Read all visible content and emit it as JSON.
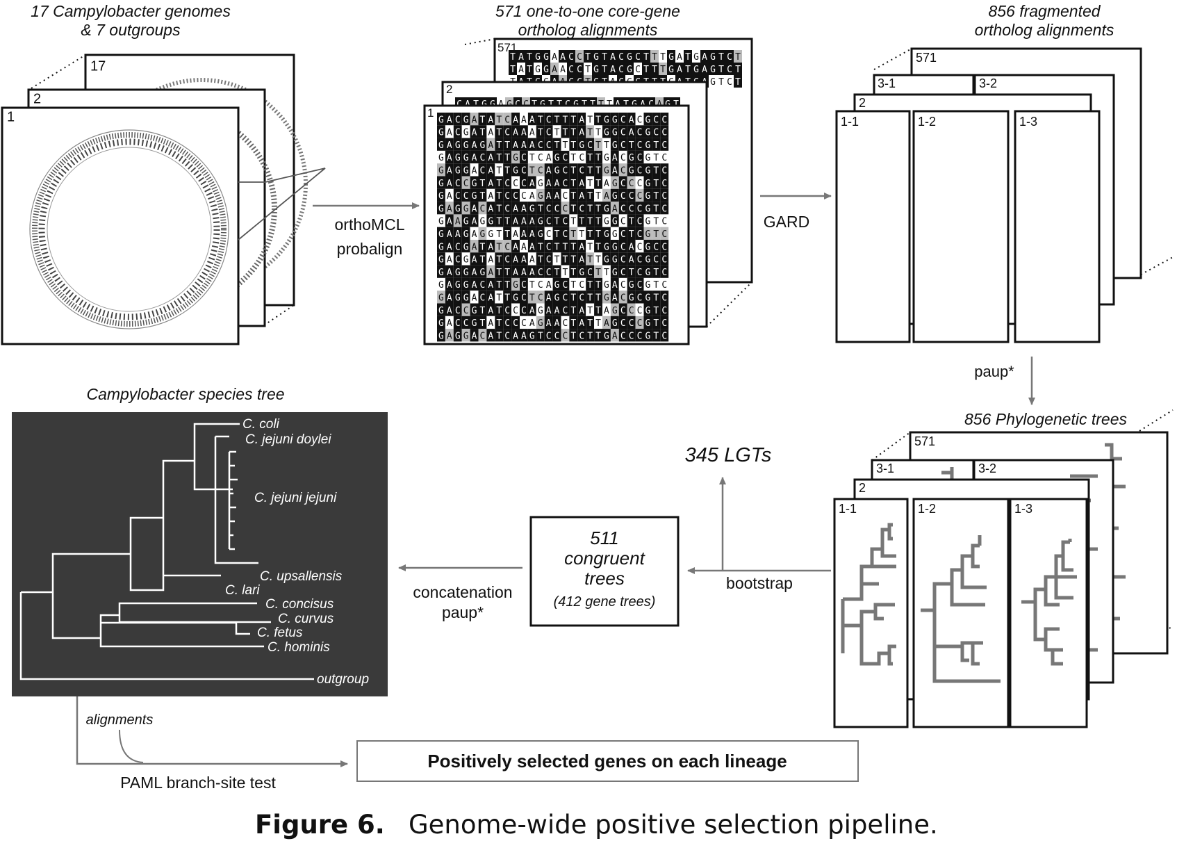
{
  "stages": {
    "genomes": {
      "title_line1": "17 Campylobacter genomes",
      "title_line2": "& 7 outgroups",
      "card_numbers": [
        "1",
        "2",
        "17"
      ]
    },
    "alignments": {
      "title_line1": "571 one-to-one core-gene",
      "title_line2": "ortholog alignments",
      "card_numbers": [
        "1",
        "2",
        "571"
      ],
      "rows": [
        "GACGATATCAAATCTTTATTGGCACGCC",
        "GACGATATCAAATCTTTATTGGCACGCC",
        "GAGGAGATTAAACCTTTGCTTGCTCGTC",
        "GAGGACATTGCTCAGCTCTTGACGCGTC",
        "GAGGACATTGCTCAGCTCTTGACGCGTC",
        "GACCGTATCCCAGAACTATTAGCCCGTC",
        "GACCGTATCCCAGAACTATTAGCCCGTC",
        "GAGGACATCAAGTCCCTCTTGACCCGTC",
        "GAAGAGGTTAAAGCTCTTTTGGCTCGTC",
        "GAAGAGGTTAAAGCTCTTTTGGCTCGTC",
        "GACGATATCAAATCTTTATTGGCACGCC",
        "GACGATATCAAATCTTTATTGGCACGCC",
        "GAGGAGATTAAACCTTTGCTTGCTCGTC",
        "GAGGACATTGCTCAGCTCTTGACGCGTC",
        "GAGGACATTGCTCAGCTCTTGACGCGTC",
        "GACCGTATCCCAGAACTATTAGCCCGTC",
        "GACCGTATCCCAGAACTATTAGCCCGTC",
        "GAGGACATCAAGTCCCTCTTGACCCGTC"
      ],
      "back_row_571": "TATGGAACCTGTACGCTTTGATGAGTCT",
      "back_row_2": "CATGGAGCCTGTTCGTTTTATGACAGT"
    },
    "fragmented": {
      "title_line1": "856 fragmented",
      "title_line2": "ortholog alignments",
      "card_labels": [
        "1-1",
        "1-2",
        "1-3",
        "2",
        "3-1",
        "3-2",
        "571"
      ]
    },
    "trees": {
      "title": "856 Phylogenetic trees",
      "card_labels": [
        "1-1",
        "1-2",
        "1-3",
        "2",
        "3-1",
        "3-2",
        "571"
      ]
    },
    "congruent": {
      "line1": "511",
      "line2": "congruent",
      "line3": "trees",
      "line4": "(412 gene trees)"
    },
    "lgts": "345 LGTs",
    "species_tree": {
      "title": "Campylobacter species tree",
      "taxa": [
        "C. coli",
        "C. jejuni doylei",
        "C. jejuni jejuni",
        "C. upsallensis",
        "C. lari",
        "C. concisus",
        "C. curvus",
        "C. fetus",
        "C. hominis",
        "outgroup"
      ]
    },
    "result_box": "Positively selected genes on each lineage"
  },
  "arrows": {
    "orthomcl": "orthoMCL",
    "probalign": "probalign",
    "gard": "GARD",
    "paup_star": "paup*",
    "bootstrap": "bootstrap",
    "concatenation": "concatenation",
    "paup_star_2": "paup*",
    "alignments_label": "alignments",
    "paml": "PAML branch-site test"
  },
  "caption": {
    "label": "Figure 6.",
    "text": "Genome-wide positive selection pipeline."
  },
  "colors": {
    "arrow_gray": "#777777",
    "tree_panel": "#3a3a3a",
    "black": "#111111"
  }
}
